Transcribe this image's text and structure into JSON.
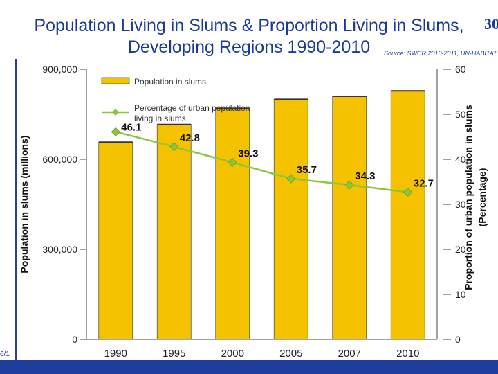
{
  "slide": {
    "title_line1": "Population Living in Slums & Proportion Living in Slums,",
    "title_line2": "Developing Regions 1990-2010",
    "slide_number": "30",
    "source": "Source: SWCR 2010-2011, UN-HABITAT",
    "date_stub": "6/1"
  },
  "colors": {
    "bar": "#f5c200",
    "bar_edge": "#555555",
    "line": "#8cc63f",
    "axis": "#444444",
    "title": "#1a3a9a",
    "accent_bar": "#1f3f9e"
  },
  "chart_data": {
    "type": "bar",
    "categories": [
      "1990",
      "1995",
      "2000",
      "2005",
      "2007",
      "2010"
    ],
    "series": [
      {
        "name": "Population in slums",
        "type": "bar",
        "axis": "left",
        "values": [
          657000,
          716000,
          770000,
          800000,
          810000,
          828000
        ]
      },
      {
        "name": "Percentage of urban population living in slums",
        "type": "line",
        "axis": "right",
        "values": [
          46.1,
          42.8,
          39.3,
          35.7,
          34.3,
          32.7
        ],
        "labels": [
          "46.1",
          "42.8",
          "39.3",
          "35.7",
          "34.3",
          "32.7"
        ]
      }
    ],
    "title": "Population Living in Slums & Proportion Living in Slums, Developing Regions 1990-2010",
    "ylabel": "Population in slums (millions)",
    "y2label_line1": "Proportion of urban population in slums",
    "y2label_line2": "(Percentage)",
    "ylim": [
      0,
      900000
    ],
    "y2lim": [
      0,
      60
    ],
    "yticks": [
      "0",
      "300,000",
      "600,000",
      "900,000"
    ],
    "yticks_values": [
      0,
      300000,
      600000,
      900000
    ],
    "y2ticks": [
      "0",
      "10",
      "20",
      "30",
      "40",
      "50",
      "60"
    ],
    "y2ticks_values": [
      0,
      10,
      20,
      30,
      40,
      50,
      60
    ],
    "legend": {
      "position": "top-left",
      "bar_label": "Population in slums",
      "line_label_line1": "Percentage of urban population",
      "line_label_line2": "living in slums"
    }
  }
}
